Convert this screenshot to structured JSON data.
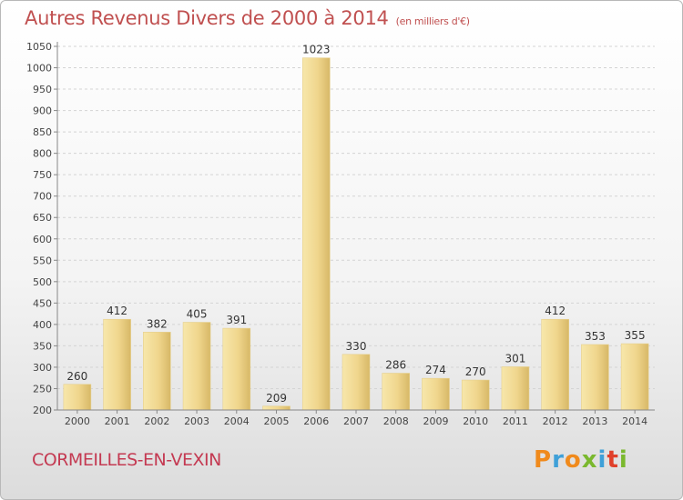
{
  "header": {
    "title": "Autres Revenus Divers de 2000 à 2014",
    "unit": "(en milliers d'€)"
  },
  "footer": {
    "town": "CORMEILLES-EN-VEXIN",
    "logo": "Proxiti"
  },
  "colors": {
    "title": "#c05050",
    "town": "#c43a52",
    "bar_light": "#f6e4a4",
    "bar_dark": "#d9bb6c",
    "logo_letters": [
      "#f08a1c",
      "#3fa0d8",
      "#f08a1c",
      "#7ab82e",
      "#3fa0d8",
      "#e0402a",
      "#7ab82e"
    ]
  },
  "chart_data": {
    "type": "bar",
    "categories": [
      "2000",
      "2001",
      "2002",
      "2003",
      "2004",
      "2005",
      "2006",
      "2007",
      "2008",
      "2009",
      "2010",
      "2011",
      "2012",
      "2013",
      "2014"
    ],
    "values": [
      260,
      412,
      382,
      405,
      391,
      209,
      1023,
      330,
      286,
      274,
      270,
      301,
      412,
      353,
      355
    ],
    "title": "Autres Revenus Divers de 2000 à 2014",
    "xlabel": "",
    "ylabel": "",
    "ylim": [
      200,
      1050
    ],
    "yticks": [
      200,
      250,
      300,
      350,
      400,
      450,
      500,
      550,
      600,
      650,
      700,
      750,
      800,
      850,
      900,
      950,
      1000,
      1050
    ],
    "grid": true,
    "legend": "none",
    "data_labels": true
  }
}
